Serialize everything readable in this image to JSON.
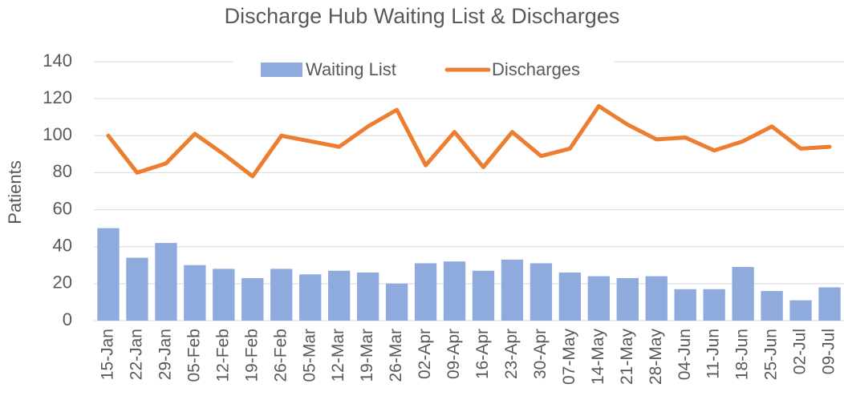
{
  "chart_data": {
    "type": "bar",
    "title": "Discharge Hub Waiting List & Discharges",
    "ylabel": "Patients",
    "categories": [
      "15-Jan",
      "22-Jan",
      "29-Jan",
      "05-Feb",
      "12-Feb",
      "19-Feb",
      "26-Feb",
      "05-Mar",
      "12-Mar",
      "19-Mar",
      "26-Mar",
      "02-Apr",
      "09-Apr",
      "16-Apr",
      "23-Apr",
      "30-Apr",
      "07-May",
      "14-May",
      "21-May",
      "28-May",
      "04-Jun",
      "11-Jun",
      "18-Jun",
      "25-Jun",
      "02-Jul",
      "09-Jul"
    ],
    "series": [
      {
        "name": "Waiting List",
        "type": "bar",
        "color": "#8faadc",
        "values": [
          50,
          34,
          42,
          30,
          28,
          23,
          28,
          25,
          27,
          26,
          20,
          31,
          32,
          27,
          33,
          31,
          26,
          24,
          23,
          24,
          17,
          17,
          29,
          16,
          11,
          18
        ]
      },
      {
        "name": "Discharges",
        "type": "line",
        "color": "#ed7d31",
        "values": [
          100,
          80,
          85,
          101,
          90,
          78,
          100,
          97,
          94,
          105,
          114,
          84,
          102,
          83,
          102,
          89,
          93,
          116,
          106,
          98,
          99,
          92,
          97,
          105,
          93,
          94
        ]
      }
    ],
    "ylim": [
      0,
      140
    ],
    "yticks": [
      0,
      20,
      40,
      60,
      80,
      100,
      120,
      140
    ],
    "grid": true,
    "legend": "top"
  }
}
